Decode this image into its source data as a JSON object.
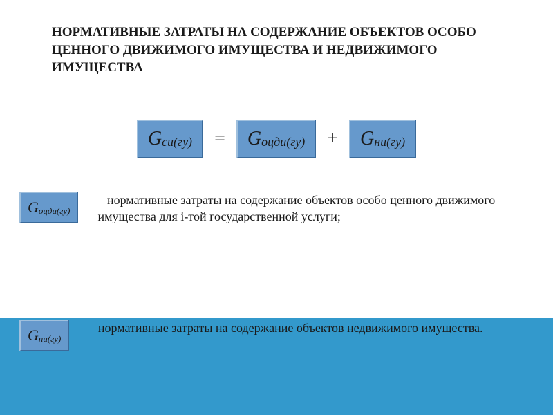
{
  "title": "НОРМАТИВНЫЕ ЗАТРАТЫ НА СОДЕРЖАНИЕ ОБЪЕКТОВ ОСОБО ЦЕННОГО ДВИЖИМОГО ИМУЩЕСТВА И НЕДВИЖИМОГО ИМУЩЕСТВА",
  "formula": {
    "lhs": {
      "g": "G",
      "sub": "си(гу)"
    },
    "eq": "=",
    "t1": {
      "g": "G",
      "sub": "оцди(гу)"
    },
    "plus": "+",
    "t2": {
      "g": "G",
      "sub": "ни(гу)"
    }
  },
  "legend1": {
    "box": {
      "g": "G",
      "sub": "оцди(гу)"
    },
    "text": "– нормативные затраты на содержание объектов особо ценного движимого имущества для i-той государственной услуги;"
  },
  "legend2": {
    "box": {
      "g": "G",
      "sub": "ни(гу)"
    },
    "text": "– нормативные затраты на содержание объектов недвижимого имущества."
  },
  "colors": {
    "block_bg": "#6699cc",
    "strip_bg": "#3399cc"
  }
}
